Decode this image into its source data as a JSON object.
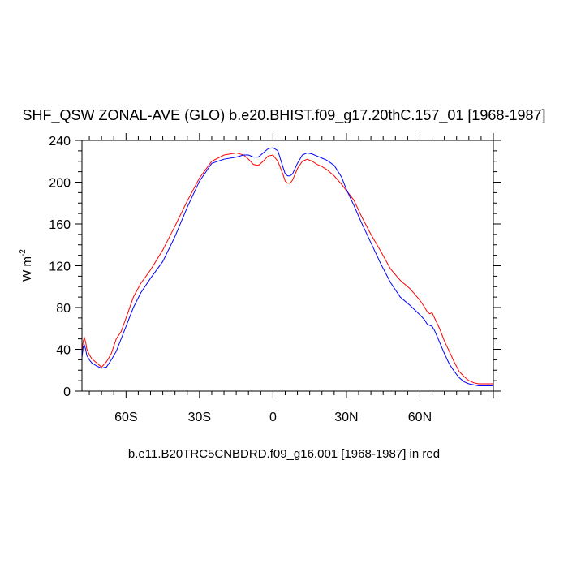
{
  "chart_data": {
    "type": "line",
    "title": "SHF_QSW ZONAL-AVE (GLO) b.e20.BHIST.f09_g17.20thC.157_01 [1968-1987]",
    "xlabel": "b.e11.B20TRC5CNBDRD.f09_g16.001 [1968-1987] in red",
    "ylabel": "W m",
    "ylabel_superscript": "-2",
    "xlim": [
      -78,
      90
    ],
    "ylim": [
      0,
      240
    ],
    "x_ticks": [
      -60,
      -30,
      0,
      30,
      60
    ],
    "x_tick_labels": [
      "60S",
      "30S",
      "0",
      "30N",
      "60N"
    ],
    "y_ticks": [
      0,
      40,
      80,
      120,
      160,
      200,
      240
    ],
    "y_tick_labels": [
      "0",
      "40",
      "80",
      "120",
      "160",
      "200",
      "240"
    ],
    "grid": false,
    "legend": "none",
    "series": [
      {
        "color": "#ff0000",
        "x": [
          -78,
          -77.5,
          -77,
          -76.5,
          -76,
          -75,
          -74,
          -72,
          -70,
          -68,
          -66,
          -64,
          -62,
          -60,
          -57,
          -54,
          -50,
          -45,
          -40,
          -35,
          -30,
          -25,
          -20,
          -15,
          -12,
          -10,
          -8,
          -6,
          -4,
          -2,
          0,
          2,
          4,
          5,
          6,
          7,
          8,
          10,
          12,
          14,
          16,
          18,
          20,
          22,
          25,
          28,
          30,
          33,
          36,
          40,
          44,
          48,
          52,
          56,
          60,
          62,
          63,
          64,
          65,
          66,
          68,
          70,
          72,
          74,
          76,
          78,
          80,
          82,
          84,
          86,
          88,
          90
        ],
        "y": [
          37,
          48,
          51,
          47,
          40,
          35,
          31,
          27,
          23,
          28,
          36,
          50,
          57,
          70,
          90,
          103,
          116,
          135,
          158,
          182,
          204,
          220,
          226,
          228,
          226,
          222,
          217,
          216,
          220,
          225,
          226,
          220,
          208,
          201,
          199,
          199,
          202,
          213,
          220,
          222,
          220,
          217,
          215,
          212,
          206,
          198,
          192,
          183,
          168,
          150,
          134,
          117,
          106,
          98,
          87,
          80,
          76,
          74,
          75,
          70,
          60,
          48,
          38,
          28,
          19,
          14,
          10,
          8,
          7,
          7,
          7,
          7
        ]
      },
      {
        "color": "#0000ff",
        "x": [
          -78,
          -77.5,
          -77,
          -76.5,
          -76,
          -75,
          -74,
          -72,
          -70,
          -68,
          -66,
          -64,
          -62,
          -60,
          -57,
          -54,
          -50,
          -45,
          -40,
          -35,
          -30,
          -25,
          -20,
          -15,
          -12,
          -10,
          -8,
          -6,
          -4,
          -2,
          0,
          2,
          4,
          5,
          6,
          7,
          8,
          10,
          12,
          14,
          16,
          18,
          20,
          22,
          25,
          28,
          30,
          33,
          36,
          40,
          44,
          48,
          52,
          56,
          60,
          62,
          63,
          64,
          65,
          66,
          68,
          70,
          72,
          74,
          76,
          78,
          80,
          82,
          84,
          86,
          88,
          90
        ],
        "y": [
          32,
          42,
          44,
          40,
          34,
          30,
          27,
          24,
          22,
          23,
          30,
          38,
          50,
          62,
          80,
          94,
          108,
          124,
          148,
          176,
          201,
          218,
          222,
          224,
          226,
          226,
          224,
          224,
          228,
          232,
          233,
          230,
          215,
          208,
          206,
          206,
          208,
          218,
          226,
          228,
          227,
          225,
          223,
          221,
          216,
          205,
          193,
          178,
          162,
          142,
          122,
          104,
          90,
          82,
          73,
          68,
          64,
          63,
          62,
          58,
          47,
          36,
          26,
          19,
          13,
          9,
          7,
          6,
          5,
          5,
          5,
          5
        ]
      }
    ]
  }
}
